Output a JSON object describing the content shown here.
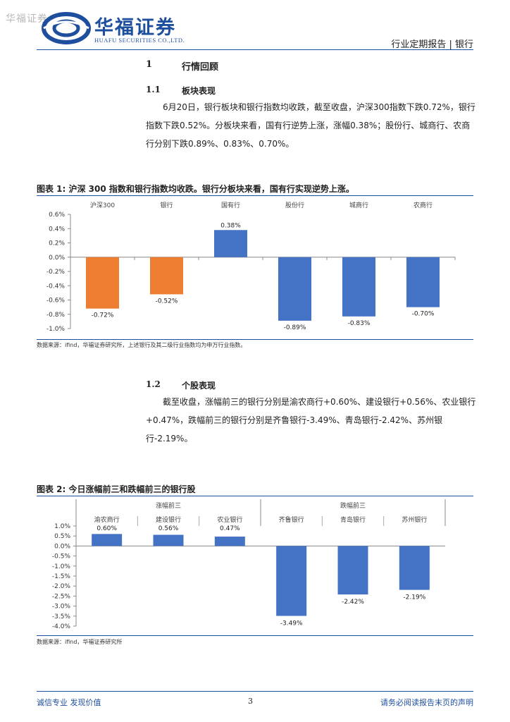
{
  "header": {
    "watermark": "华福证券",
    "brand_cn": "华福证券",
    "brand_en": "HUAFU SECURITIES CO.,LTD.",
    "report_type": "行业定期报告 | 银行"
  },
  "section1": {
    "num": "1",
    "title": "行情回顾"
  },
  "section1_1": {
    "num": "1.1",
    "title": "板块表现",
    "paragraph": "6月20日，银行板块和银行指数均收跌，截至收盘，沪深300指数下跌0.72%，银行指数下跌0.52%。分板块来看，国有行逆势上涨，涨幅0.38%；股份行、城商行、农商行分别下跌0.89%、0.83%、0.70%。"
  },
  "figure1": {
    "title": "图表 1:  沪深 300 指数和银行指数均收跌。银行分板块来看，国有行实现逆势上涨。",
    "source": "数据来源：ifind，华福证券研究所，上述银行及其二级行业指数均为申万行业指数。"
  },
  "section1_2": {
    "num": "1.2",
    "title": "个股表现",
    "paragraph": "截至收盘，涨幅前三的银行分别是渝农商行+0.60%、建设银行+0.56%、农业银行+0.47%，跌幅前三的银行分别是齐鲁银行-3.49%、青岛银行-2.42%、苏州银行-2.19%。"
  },
  "figure2": {
    "title": "图表 2:  今日涨幅前三和跌幅前三的银行股",
    "source": "数据来源：ifind，华福证券研究所"
  },
  "footer": {
    "left": "诚信专业   发现价值",
    "page": "3",
    "right": "请务必阅读报告末页的声明"
  },
  "colors": {
    "brand_blue": "#1e4f9e",
    "bar_blue": "#4472c4",
    "bar_orange": "#ed7d31"
  },
  "chart_data": [
    {
      "type": "bar",
      "categories": [
        "沪深300",
        "银行",
        "国有行",
        "股份行",
        "城商行",
        "农商行"
      ],
      "values": [
        -0.72,
        -0.52,
        0.38,
        -0.89,
        -0.83,
        -0.7
      ],
      "labels": [
        "-0.72%",
        "-0.52%",
        "0.38%",
        "-0.89%",
        "-0.83%",
        "-0.70%"
      ],
      "colors": [
        "#ed7d31",
        "#ed7d31",
        "#4472c4",
        "#4472c4",
        "#4472c4",
        "#4472c4"
      ],
      "ylim": [
        -1.0,
        0.6
      ],
      "yticks": [
        0.6,
        0.4,
        0.2,
        0.0,
        -0.2,
        -0.4,
        -0.6,
        -0.8,
        -1.0
      ],
      "ytick_labels": [
        "0.6%",
        "0.4%",
        "0.2%",
        "0.0%",
        "-0.2%",
        "-0.4%",
        "-0.6%",
        "-0.8%",
        "-1.0%"
      ],
      "category_position": "top",
      "grid": false
    },
    {
      "type": "bar",
      "groups": [
        "涨幅前三",
        "跌幅前三"
      ],
      "categories": [
        "渝农商行",
        "建设银行",
        "农业银行",
        "齐鲁银行",
        "青岛银行",
        "苏州银行"
      ],
      "values": [
        0.6,
        0.56,
        0.47,
        -3.49,
        -2.42,
        -2.19
      ],
      "labels": [
        "0.60%",
        "0.56%",
        "0.47%",
        "-3.49%",
        "-2.42%",
        "-2.19%"
      ],
      "ylim": [
        -4.0,
        1.0
      ],
      "yticks": [
        1.0,
        0.5,
        0.0,
        -0.5,
        -1.0,
        -1.5,
        -2.0,
        -2.5,
        -3.0,
        -3.5,
        -4.0
      ],
      "ytick_labels": [
        "1.0%",
        "0.5%",
        "0.0%",
        "-0.5%",
        "-1.0%",
        "-1.5%",
        "-2.0%",
        "-2.5%",
        "-3.0%",
        "-3.5%",
        "-4.0%"
      ],
      "category_position": "top",
      "grid": false
    }
  ]
}
